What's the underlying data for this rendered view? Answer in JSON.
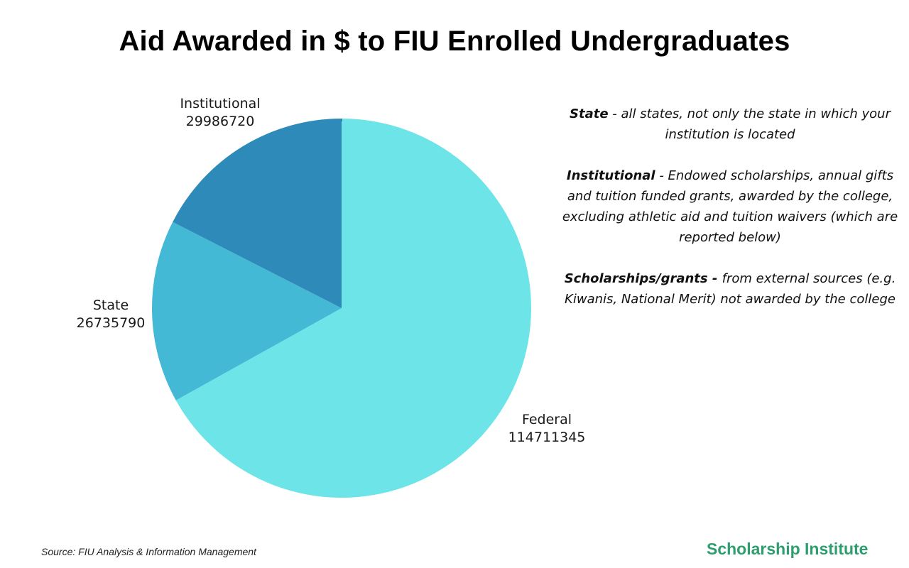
{
  "title": "Aid Awarded in $ to FIU Enrolled Undergraduates",
  "chart_data": {
    "type": "pie",
    "title": "Aid Awarded in $ to FIU Enrolled Undergraduates",
    "slices": [
      {
        "label": "Federal",
        "value": 114711345,
        "color": "#6de5e8"
      },
      {
        "label": "State",
        "value": 26735790,
        "color": "#43b9d6"
      },
      {
        "label": "Institutional",
        "value": 29986720,
        "color": "#2e8bb9"
      }
    ],
    "start_angle_deg": 0,
    "direction": "clockwise"
  },
  "notes": [
    {
      "term": "State",
      "text": " - all states, not only the state in which your institution is located"
    },
    {
      "term": "Institutional",
      "text": " - Endowed scholarships, annual gifts and tuition funded grants, awarded by the college, excluding athletic aid and tuition waivers (which are reported below)"
    },
    {
      "term": "Scholarships/grants - ",
      "text": " from external sources (e.g. Kiwanis, National Merit) not awarded by the college"
    }
  ],
  "source": "Source: FIU Analysis & Information Management",
  "brand": "Scholarship Institute",
  "colors": {
    "brand": "#2e9e6e",
    "federal": "#6de5e8",
    "state": "#43b9d6",
    "institutional": "#2e8bb9",
    "divider": "#1f5f8a"
  }
}
